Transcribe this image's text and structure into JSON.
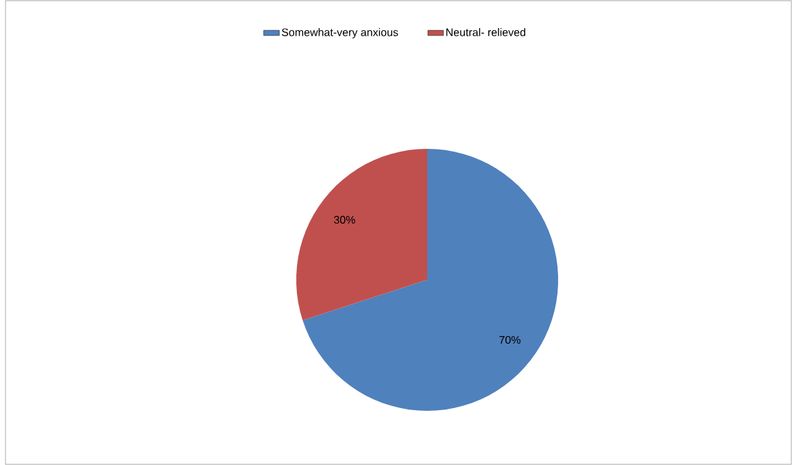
{
  "chart_data": {
    "type": "pie",
    "categories": [
      "Somewhat-very anxious",
      "Neutral- relieved"
    ],
    "values": [
      70,
      30
    ],
    "colors": [
      "#4f81bd",
      "#c0504d"
    ],
    "value_labels": [
      "70%",
      "30%"
    ],
    "legend": "top"
  }
}
